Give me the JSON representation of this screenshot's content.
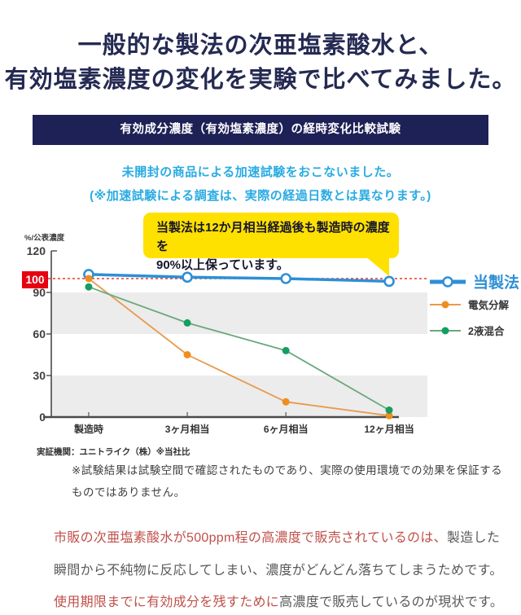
{
  "header": {
    "title_line1": "一般的な製法の次亜塩素酸水と、",
    "title_line2": "有効塩素濃度の変化を実験で比べてみました。",
    "banner": "有効成分濃度（有効塩素濃度）の経時変化比較試験",
    "title_color": "#252a52",
    "banner_bg": "#1e2156"
  },
  "accel_note": {
    "line1": "未開封の商品による加速試験をおこないました。",
    "line2": "(※加速試験による調査は、実際の経過日数とは異なります。)",
    "color": "#29abe2"
  },
  "callout": {
    "line1": "当製法は12か月相当経過後も製造時の濃度を",
    "line2": "90%以上保っています。",
    "bg": "#ffe100"
  },
  "chart_data": {
    "type": "line",
    "categories": [
      "製造時",
      "3ヶ月相当",
      "6ヶ月相当",
      "12ヶ月相当"
    ],
    "series": [
      {
        "name": "当製法",
        "values": [
          103,
          101,
          100,
          98
        ],
        "color": "#2e8fd6",
        "line_color": "#2e8fd6",
        "marker": "open-circle",
        "emphasis": true
      },
      {
        "name": "電気分解",
        "values": [
          100,
          45,
          11,
          1
        ],
        "color": "#ef8e1e",
        "line_color": "#e89a4e",
        "marker": "dot",
        "emphasis": false
      },
      {
        "name": "2液混合",
        "values": [
          94,
          68,
          48,
          5
        ],
        "color": "#169d62",
        "line_color": "#6aa87c",
        "marker": "dot",
        "emphasis": false
      }
    ],
    "ylabel": "%/公表濃度",
    "yticks": [
      120,
      90,
      60,
      30,
      0
    ],
    "ylim": [
      0,
      120
    ],
    "highlight_label": "100",
    "highlight_value": 100,
    "reference_line": {
      "value": 100,
      "color": "#e8392b",
      "style": "dashed"
    },
    "bands": [
      [
        60,
        90
      ],
      [
        0,
        30
      ]
    ],
    "band_color": "#ececec",
    "grid": false,
    "legend_position": "right"
  },
  "chart_footer": {
    "agency": "実証機関：ユニトライク（株）※当社比"
  },
  "disclaimer": {
    "line1": "※試験結果は試験空間で確認されたものであり、実際の使用環境での効果を保証する",
    "line2": "ものではありません。"
  },
  "bottom_note": {
    "red_color": "#c0504a",
    "gray_color": "#595959",
    "lines": [
      [
        {
          "text": "市販の次亜塩素酸水が500ppm程の高濃度で販売されているのは、",
          "color": "red"
        },
        {
          "text": "製造した",
          "color": "gray"
        }
      ],
      [
        {
          "text": "瞬間から不純物に反応してしまい、濃度がどんどん落ちてしまうためです。",
          "color": "gray"
        }
      ],
      [
        {
          "text": "使用期限までに有効成分を残すために",
          "color": "red"
        },
        {
          "text": "高濃度で販売しているのが現状です。",
          "color": "gray"
        }
      ]
    ]
  }
}
